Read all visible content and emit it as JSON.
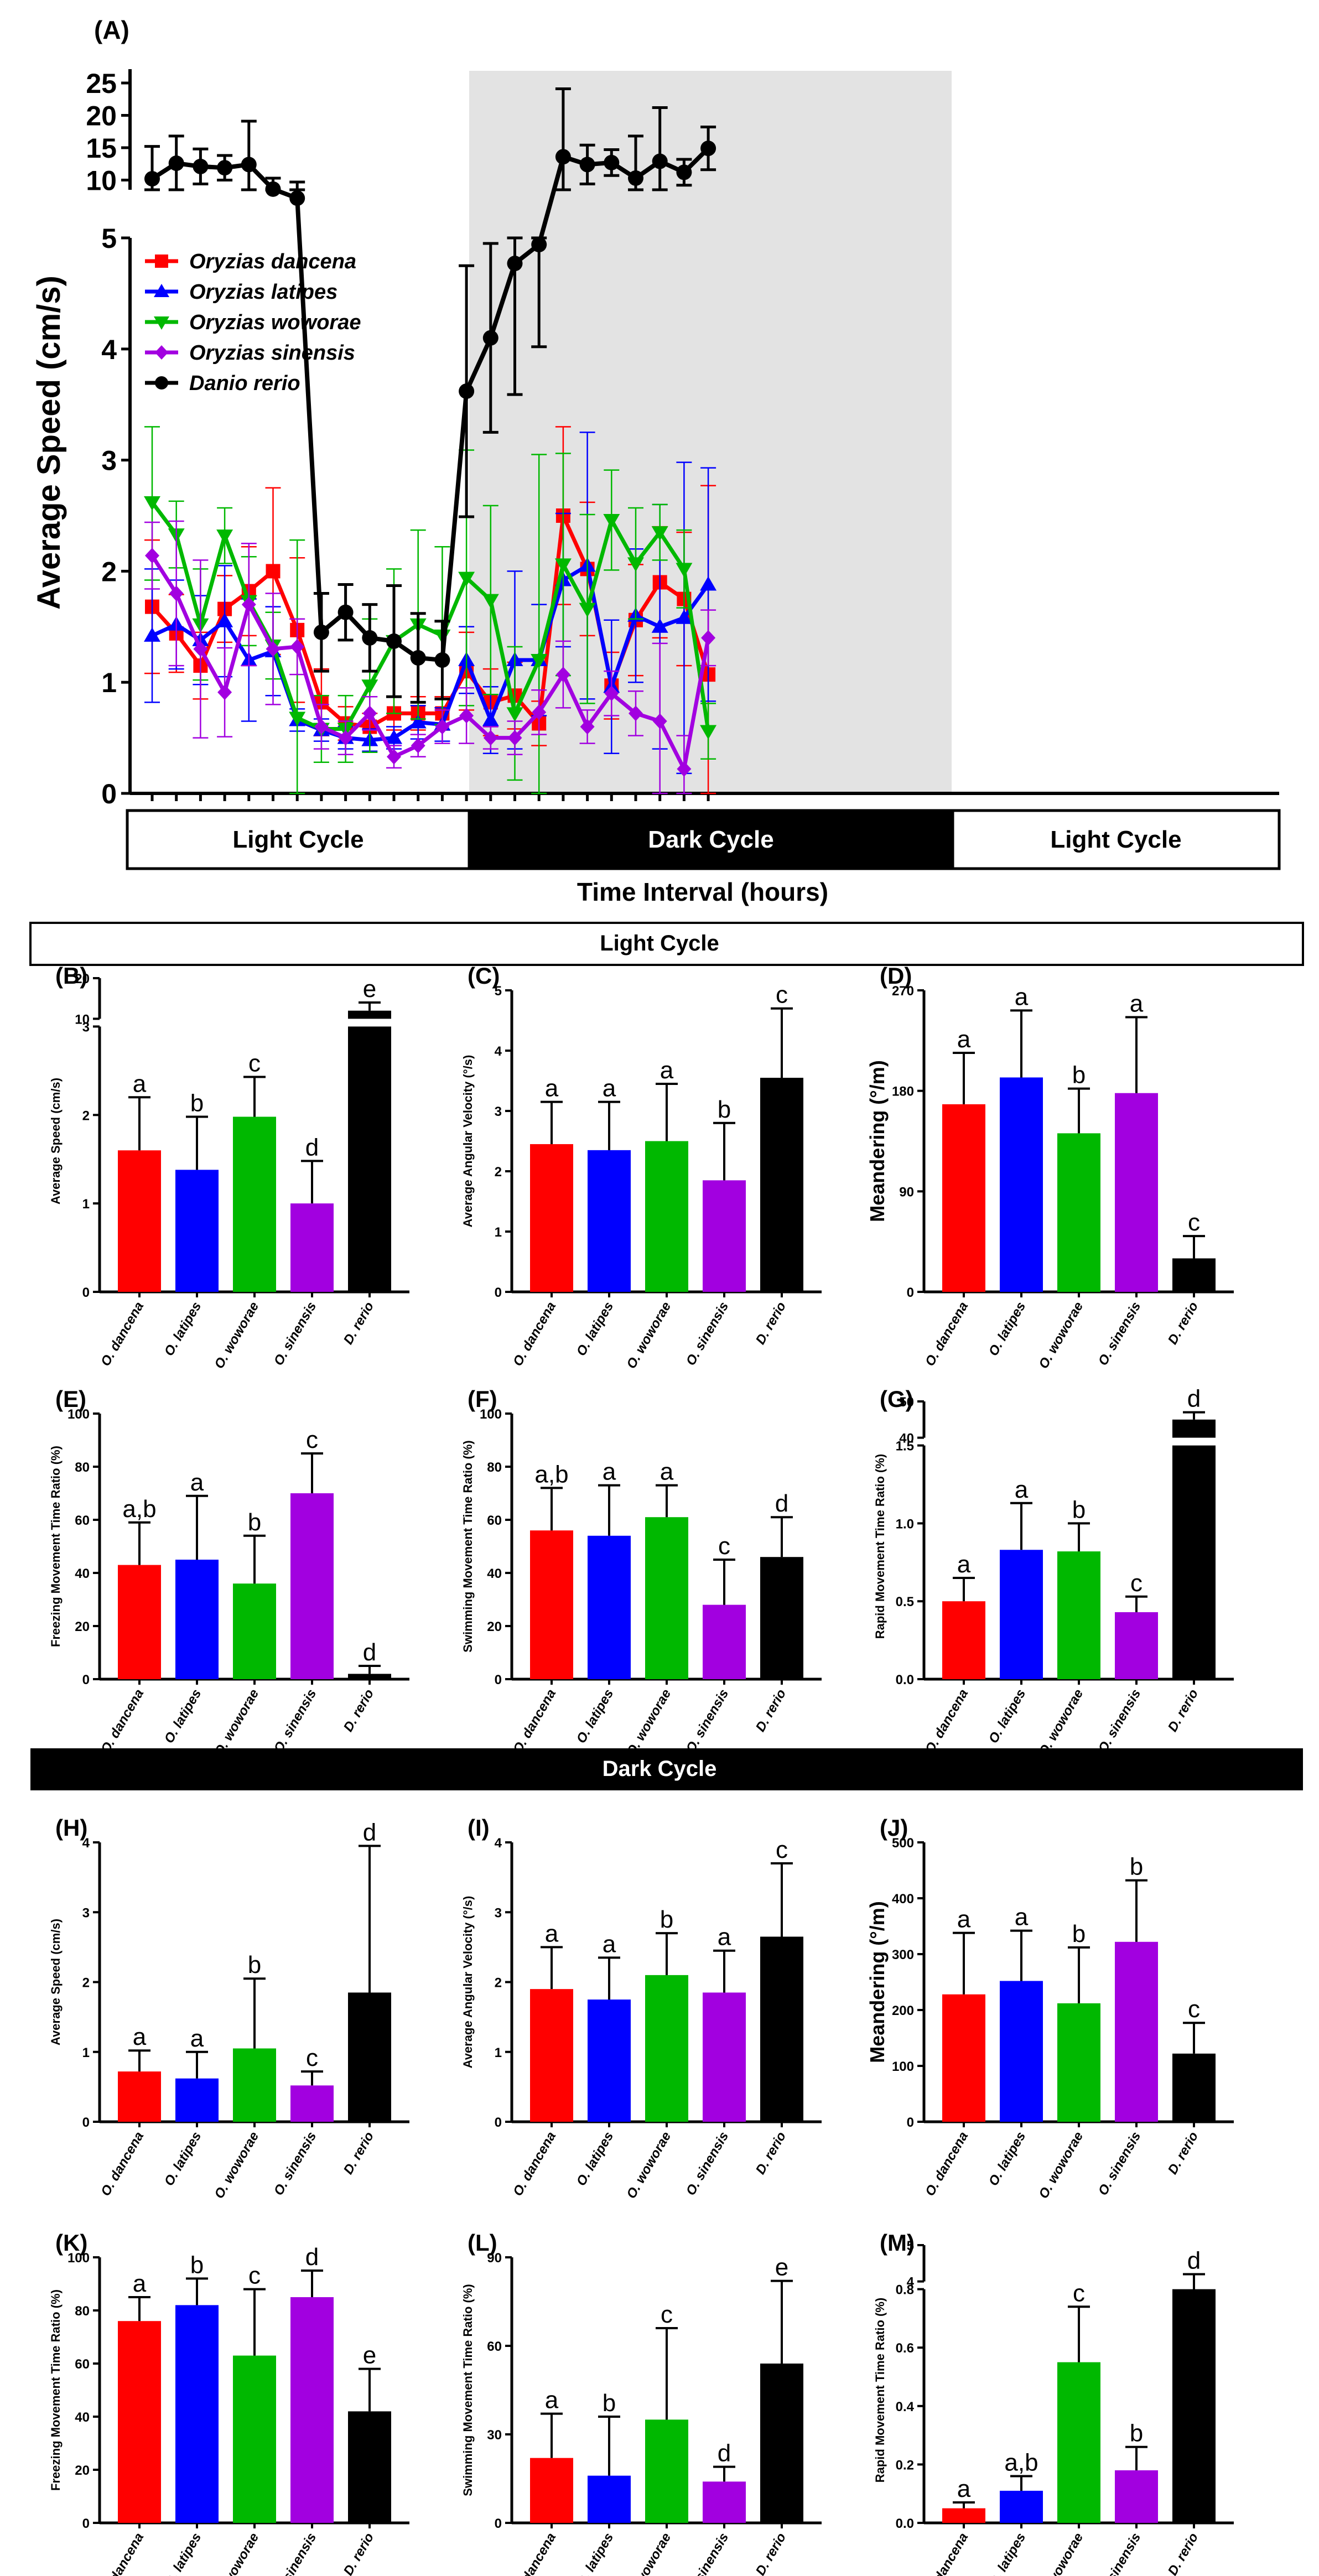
{
  "figure": {
    "panel_a_label": "(A)",
    "light_section_title": "Light Cycle",
    "dark_section_title": "Dark Cycle"
  },
  "colors": {
    "O. dancena": "#ff0000",
    "O. latipes": "#0000ff",
    "O. woworae": "#00b800",
    "O. sinensis": "#a200e0",
    "D. rerio": "#000000",
    "dark_band": "#e3e3e3"
  },
  "chart_data": [
    {
      "id": "A",
      "type": "line",
      "ylabel": "Average Speed (cm/s)",
      "xlabel": "Time Interval (hours)",
      "ylim_lower": [
        0,
        5
      ],
      "ylim_upper": [
        5,
        25
      ],
      "yticks_lower": [
        "0",
        "1",
        "2",
        "3",
        "4",
        "5"
      ],
      "yticks_upper": [
        "10",
        "15",
        "20",
        "25"
      ],
      "cycle_labels": [
        "Light Cycle",
        "Dark Cycle",
        "Light Cycle"
      ],
      "dark_range": [
        7,
        16
      ],
      "n_points": 24,
      "series": [
        {
          "name": "Oryzias dancena",
          "marker": "square",
          "values": [
            1.68,
            1.44,
            1.15,
            1.66,
            1.82,
            2.0,
            1.47,
            0.82,
            0.63,
            0.6,
            0.72,
            0.72,
            0.72,
            1.1,
            0.82,
            0.88,
            0.63,
            2.5,
            2.02,
            0.97,
            1.56,
            1.9,
            1.75,
            1.07
          ],
          "err": [
            0.6,
            0.35,
            0.3,
            0.3,
            0.4,
            0.75,
            0.65,
            0.3,
            0.15,
            0.12,
            0.15,
            0.15,
            0.15,
            0.35,
            0.3,
            0.3,
            0.2,
            0.8,
            0.6,
            0.3,
            0.5,
            0.5,
            0.6,
            1.7
          ]
        },
        {
          "name": "Oryzias latipes",
          "marker": "triangle-up",
          "values": [
            1.42,
            1.52,
            1.38,
            1.55,
            1.2,
            1.28,
            0.66,
            0.57,
            0.5,
            0.48,
            0.5,
            0.64,
            0.62,
            1.2,
            0.66,
            1.2,
            1.2,
            1.92,
            2.05,
            0.96,
            1.6,
            1.5,
            1.58,
            1.88
          ],
          "err": [
            0.6,
            0.4,
            0.4,
            0.5,
            0.55,
            0.4,
            0.1,
            0.1,
            0.1,
            0.1,
            0.1,
            0.15,
            0.15,
            0.3,
            0.3,
            0.8,
            0.5,
            0.6,
            1.2,
            0.6,
            0.6,
            1.1,
            1.4,
            1.05
          ]
        },
        {
          "name": "Oryzias woworae",
          "marker": "triangle-down",
          "values": [
            2.62,
            2.33,
            1.52,
            2.32,
            1.73,
            1.33,
            0.68,
            0.58,
            0.58,
            0.97,
            1.37,
            1.52,
            1.42,
            1.94,
            1.74,
            0.72,
            1.2,
            2.06,
            1.66,
            2.46,
            2.07,
            2.35,
            2.02,
            0.56
          ],
          "err": [
            0.7,
            0.3,
            0.5,
            0.25,
            0.4,
            0.3,
            1.6,
            0.3,
            0.3,
            0.6,
            0.65,
            0.85,
            0.8,
            1.15,
            0.85,
            0.6,
            1.85,
            1.0,
            0.85,
            0.45,
            0.5,
            0.25,
            0.35,
            0.25
          ]
        },
        {
          "name": "Oryzias sinensis",
          "marker": "diamond",
          "values": [
            2.14,
            1.8,
            1.3,
            0.91,
            1.7,
            1.3,
            1.32,
            0.6,
            0.5,
            0.72,
            0.33,
            0.43,
            0.6,
            0.7,
            0.5,
            0.5,
            0.73,
            1.07,
            0.6,
            0.9,
            0.72,
            0.65,
            0.22,
            1.4
          ],
          "err": [
            0.3,
            0.65,
            0.8,
            0.4,
            0.55,
            0.5,
            0.25,
            0.2,
            0.15,
            0.15,
            0.1,
            0.1,
            0.15,
            0.25,
            0.1,
            0.15,
            0.2,
            0.3,
            0.15,
            0.2,
            0.2,
            0.7,
            0.3,
            0.25
          ]
        },
        {
          "name": "Danio rerio",
          "marker": "circle",
          "values": [
            10.2,
            12.6,
            12.1,
            11.9,
            12.4,
            8.6,
            7.2,
            1.45,
            1.63,
            1.4,
            1.37,
            1.22,
            1.2,
            3.62,
            4.1,
            4.77,
            4.94,
            13.6,
            12.4,
            12.7,
            10.3,
            12.9,
            11.2,
            14.9
          ],
          "err": [
            5.0,
            4.2,
            2.7,
            1.9,
            6.7,
            1.7,
            2.5,
            0.35,
            0.25,
            0.3,
            0.5,
            0.4,
            0.35,
            1.13,
            0.85,
            1.18,
            0.92,
            10.5,
            3.0,
            2.0,
            6.5,
            8.3,
            2.0,
            3.3
          ]
        }
      ]
    },
    {
      "id": "B",
      "type": "bar",
      "label": "(B)",
      "section": "light",
      "ylabel": "Average Speed (cm/s)",
      "categories": [
        "O. dancena",
        "O. latipes",
        "O. woworae",
        "O. sinensis",
        "D. rerio"
      ],
      "values": [
        1.6,
        1.38,
        1.98,
        1.0,
        12.0
      ],
      "err": [
        0.6,
        0.6,
        0.45,
        0.48,
        2.0
      ],
      "letters": [
        "a",
        "b",
        "c",
        "d",
        "e"
      ],
      "ylim": [
        0,
        3
      ],
      "break": {
        "lower_max": 3,
        "upper_min": 10,
        "upper_max": 20
      },
      "yticks": [
        "0",
        "1",
        "2",
        "3"
      ],
      "yticks_upper": [
        "10",
        "20"
      ]
    },
    {
      "id": "C",
      "type": "bar",
      "label": "(C)",
      "section": "light",
      "ylabel": "Average Angular Velocity (°/s)",
      "categories": [
        "O. dancena",
        "O. latipes",
        "O. woworae",
        "O. sinensis",
        "D. rerio"
      ],
      "values": [
        2.45,
        2.35,
        2.5,
        1.85,
        3.55
      ],
      "err": [
        0.7,
        0.8,
        0.95,
        0.95,
        1.15
      ],
      "letters": [
        "a",
        "a",
        "a",
        "b",
        "c"
      ],
      "ylim": [
        0,
        5
      ],
      "yticks": [
        "0",
        "1",
        "2",
        "3",
        "4",
        "5"
      ]
    },
    {
      "id": "D",
      "type": "bar",
      "label": "(D)",
      "section": "light",
      "ylabel": "Meandering (°/m)",
      "categories": [
        "O. dancena",
        "O. latipes",
        "O. woworae",
        "O. sinensis",
        "D. rerio"
      ],
      "values": [
        168,
        192,
        142,
        178,
        30
      ],
      "err": [
        46,
        60,
        40,
        68,
        20
      ],
      "letters": [
        "a",
        "a",
        "b",
        "a",
        "c"
      ],
      "ylim": [
        0,
        270
      ],
      "yticks": [
        "0",
        "90",
        "180",
        "270"
      ]
    },
    {
      "id": "E",
      "type": "bar",
      "label": "(E)",
      "section": "light",
      "ylabel": "Freezing Movement Time Ratio (%)",
      "categories": [
        "O. dancena",
        "O. latipes",
        "O. woworae",
        "O. sinensis",
        "D. rerio"
      ],
      "values": [
        43,
        45,
        36,
        70,
        2
      ],
      "err": [
        16,
        24,
        18,
        15,
        3
      ],
      "letters": [
        "a,b",
        "a",
        "b",
        "c",
        "d"
      ],
      "ylim": [
        0,
        100
      ],
      "yticks": [
        "0",
        "20",
        "40",
        "60",
        "80",
        "100"
      ]
    },
    {
      "id": "F",
      "type": "bar",
      "label": "(F)",
      "section": "light",
      "ylabel": "Swimming Movement Time Ratio (%)",
      "categories": [
        "O. dancena",
        "O. latipes",
        "O. woworae",
        "O. sinensis",
        "D. rerio"
      ],
      "values": [
        56,
        54,
        61,
        28,
        46
      ],
      "err": [
        16,
        19,
        12,
        17,
        15
      ],
      "letters": [
        "a,b",
        "a",
        "a",
        "c",
        "d"
      ],
      "ylim": [
        0,
        100
      ],
      "yticks": [
        "0",
        "20",
        "40",
        "60",
        "80",
        "100"
      ]
    },
    {
      "id": "G",
      "type": "bar",
      "label": "(G)",
      "section": "light",
      "ylabel": "Rapid Movement Time Ratio (%)",
      "categories": [
        "O. dancena",
        "O. latipes",
        "O. woworae",
        "O. sinensis",
        "D. rerio"
      ],
      "values": [
        0.5,
        0.83,
        0.82,
        0.43,
        45
      ],
      "err": [
        0.15,
        0.3,
        0.18,
        0.1,
        2
      ],
      "letters": [
        "a",
        "a",
        "b",
        "c",
        "d"
      ],
      "ylim": [
        0,
        1.5
      ],
      "break": {
        "lower_max": 1.5,
        "upper_min": 40,
        "upper_max": 50
      },
      "yticks": [
        "0.0",
        "0.5",
        "1.0",
        "1.5"
      ],
      "yticks_upper": [
        "40",
        "50"
      ]
    },
    {
      "id": "H",
      "type": "bar",
      "label": "(H)",
      "section": "dark",
      "ylabel": "Average Speed (cm/s)",
      "categories": [
        "O. dancena",
        "O. latipes",
        "O. woworae",
        "O. sinensis",
        "D. rerio"
      ],
      "values": [
        0.72,
        0.62,
        1.05,
        0.52,
        1.85
      ],
      "err": [
        0.3,
        0.38,
        1.0,
        0.2,
        2.1
      ],
      "letters": [
        "a",
        "a",
        "b",
        "c",
        "d"
      ],
      "ylim": [
        0,
        4
      ],
      "yticks": [
        "0",
        "1",
        "2",
        "3",
        "4"
      ]
    },
    {
      "id": "I",
      "type": "bar",
      "label": "(I)",
      "section": "dark",
      "ylabel": "Average Angular Velocity (°/s)",
      "categories": [
        "O. dancena",
        "O. latipes",
        "O. woworae",
        "O. sinensis",
        "D. rerio"
      ],
      "values": [
        1.9,
        1.75,
        2.1,
        1.85,
        2.65
      ],
      "err": [
        0.6,
        0.6,
        0.6,
        0.6,
        1.05
      ],
      "letters": [
        "a",
        "a",
        "b",
        "a",
        "c"
      ],
      "ylim": [
        0,
        4
      ],
      "yticks": [
        "0",
        "1",
        "2",
        "3",
        "4"
      ]
    },
    {
      "id": "J",
      "type": "bar",
      "label": "(J)",
      "section": "dark",
      "ylabel": "Meandering (°/m)",
      "categories": [
        "O. dancena",
        "O. latipes",
        "O. woworae",
        "O. sinensis",
        "D. rerio"
      ],
      "values": [
        228,
        252,
        212,
        322,
        122
      ],
      "err": [
        110,
        90,
        100,
        110,
        55
      ],
      "letters": [
        "a",
        "a",
        "b",
        "b",
        "c"
      ],
      "ylim": [
        0,
        500
      ],
      "yticks": [
        "0",
        "100",
        "200",
        "300",
        "400",
        "500"
      ]
    },
    {
      "id": "K",
      "type": "bar",
      "label": "(K)",
      "section": "dark",
      "ylabel": "Freezing Movement Time Ratio (%)",
      "categories": [
        "O. dancena",
        "O. latipes",
        "O. woworae",
        "O. sinensis",
        "D. rerio"
      ],
      "values": [
        76,
        82,
        63,
        85,
        42
      ],
      "err": [
        9,
        10,
        25,
        10,
        16
      ],
      "letters": [
        "a",
        "b",
        "c",
        "d",
        "e"
      ],
      "ylim": [
        0,
        100
      ],
      "yticks": [
        "0",
        "20",
        "40",
        "60",
        "80",
        "100"
      ]
    },
    {
      "id": "L",
      "type": "bar",
      "label": "(L)",
      "section": "dark",
      "ylabel": "Swimming Movement Time Ratio (%)",
      "categories": [
        "O. dancena",
        "O. latipes",
        "O. woworae",
        "O. sinensis",
        "D. rerio"
      ],
      "values": [
        22,
        16,
        35,
        14,
        54
      ],
      "err": [
        15,
        20,
        31,
        5,
        28
      ],
      "letters": [
        "a",
        "b",
        "c",
        "d",
        "e"
      ],
      "ylim": [
        0,
        90
      ],
      "yticks": [
        "0",
        "30",
        "60",
        "90"
      ]
    },
    {
      "id": "M",
      "type": "bar",
      "label": "(M)",
      "section": "dark",
      "ylabel": "Rapid Movement Time Ratio (%)",
      "categories": [
        "O. dancena",
        "O. latipes",
        "O. woworae",
        "O. sinensis",
        "D. rerio"
      ],
      "values": [
        0.05,
        0.11,
        0.55,
        0.18,
        3.6
      ],
      "err": [
        0.02,
        0.05,
        0.19,
        0.08,
        0.6
      ],
      "letters": [
        "a",
        "a,b",
        "c",
        "b",
        "d"
      ],
      "ylim": [
        0,
        0.8
      ],
      "break": {
        "lower_max": 0.8,
        "upper_min": 4,
        "upper_max": 5
      },
      "yticks": [
        "0.0",
        "0.2",
        "0.4",
        "0.6",
        "0.8"
      ],
      "yticks_upper": [
        "4",
        "5"
      ]
    }
  ]
}
